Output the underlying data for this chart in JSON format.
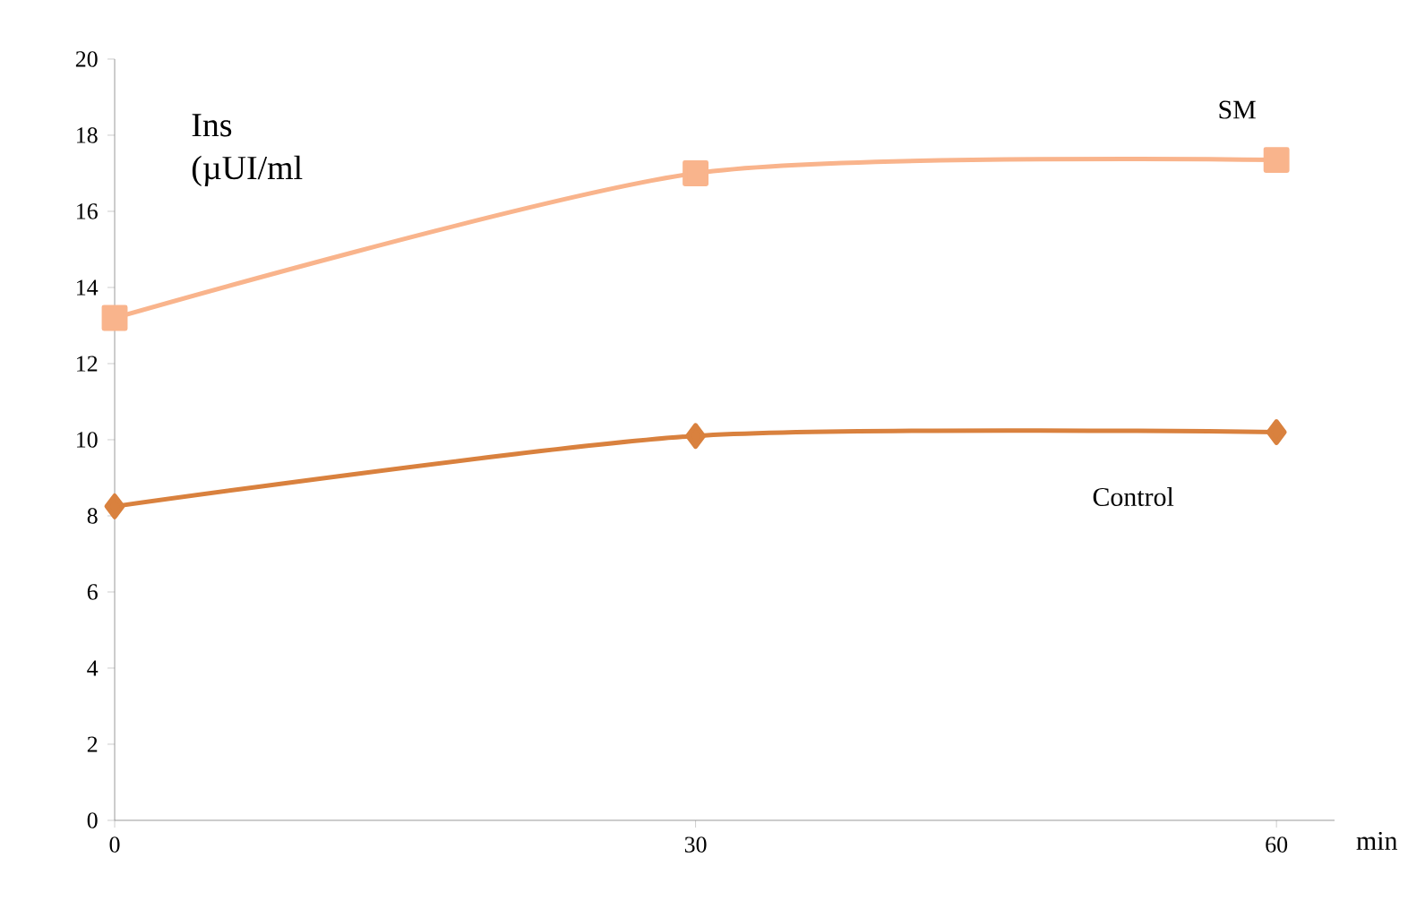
{
  "chart_data": {
    "type": "line",
    "ylabel": "Ins (µUI/ml",
    "xlabel": "min",
    "x": [
      0,
      30,
      60
    ],
    "series": [
      {
        "name": "SM",
        "color": "#f9b48c",
        "values": [
          13.2,
          17.0,
          17.35
        ],
        "marker": "square"
      },
      {
        "name": "Control",
        "color": "#d9813e",
        "values": [
          8.25,
          10.1,
          10.2
        ],
        "marker": "diamond"
      }
    ],
    "xlim": [
      0,
      63
    ],
    "xticks": [
      0,
      30,
      60
    ],
    "ylim": [
      0,
      20
    ],
    "yticks": [
      0,
      2,
      4,
      6,
      8,
      10,
      12,
      14,
      16,
      18,
      20
    ],
    "grid": false,
    "line_style": "solid"
  }
}
